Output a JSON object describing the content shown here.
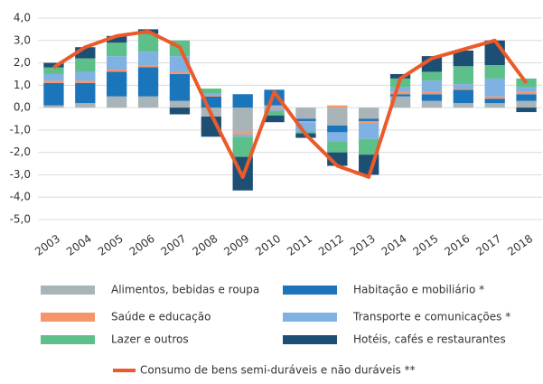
{
  "chart_data": {
    "type": "bar",
    "stacked": true,
    "categories": [
      "2003",
      "2004",
      "2005",
      "2006",
      "2007",
      "2008",
      "2009",
      "2010",
      "2011",
      "2012",
      "2013",
      "2014",
      "2015",
      "2016",
      "2017",
      "2018"
    ],
    "series": [
      {
        "name": "Alimentos, bebidas e roupa",
        "color": "#a9b4b8",
        "values": [
          0.1,
          0.2,
          0.5,
          0.5,
          0.3,
          -0.4,
          -1.1,
          0.1,
          -0.5,
          -0.8,
          -0.5,
          0.5,
          0.3,
          0.2,
          0.2,
          0.3
        ]
      },
      {
        "name": "Habitação e mobiliário *",
        "color": "#1b75bb",
        "values": [
          1.0,
          0.9,
          1.1,
          1.3,
          1.2,
          0.5,
          0.6,
          0.7,
          -0.1,
          -0.3,
          -0.1,
          0.1,
          0.3,
          0.6,
          0.2,
          0.3
        ]
      },
      {
        "name": "Saúde e educação",
        "color": "#f4956a",
        "values": [
          0.1,
          0.1,
          0.1,
          0.1,
          0.1,
          0.05,
          -0.1,
          -0.05,
          -0.05,
          0.1,
          -0.1,
          0.1,
          0.1,
          0.05,
          0.1,
          0.1
        ]
      },
      {
        "name": "Transporte e comunicações *",
        "color": "#7fb1e3",
        "values": [
          0.3,
          0.4,
          0.6,
          0.6,
          0.7,
          0.1,
          -0.1,
          -0.1,
          -0.4,
          -0.4,
          -0.7,
          0.2,
          0.5,
          0.2,
          0.8,
          0.2
        ]
      },
      {
        "name": "Lazer e outros",
        "color": "#5dbf8a",
        "values": [
          0.3,
          0.6,
          0.6,
          0.8,
          0.7,
          0.2,
          -0.9,
          -0.2,
          -0.1,
          -0.5,
          -0.7,
          0.4,
          0.4,
          0.8,
          0.6,
          0.4
        ]
      },
      {
        "name": "Hotéis, cafés e restaurantes",
        "color": "#1d4f74",
        "values": [
          0.2,
          0.5,
          0.3,
          0.2,
          -0.3,
          -0.9,
          -1.5,
          -0.3,
          -0.2,
          -0.6,
          -0.9,
          0.2,
          0.7,
          0.7,
          1.1,
          -0.2
        ]
      },
      {
        "name": "Consumo de bens semi-duráveis e não duráveis **",
        "color": "#ec5a2a",
        "type": "line",
        "values": [
          1.8,
          2.7,
          3.2,
          3.4,
          2.7,
          -0.3,
          -3.1,
          0.7,
          -1.2,
          -2.6,
          -3.1,
          1.3,
          2.2,
          2.6,
          3.0,
          1.1
        ]
      }
    ],
    "ylim": [
      -5,
      4
    ],
    "yticks": [
      {
        "value": -5,
        "label": "-5,0"
      },
      {
        "value": -4,
        "label": "-4,0"
      },
      {
        "value": -3,
        "label": "-3,0"
      },
      {
        "value": -2,
        "label": "-2,0"
      },
      {
        "value": -1,
        "label": "-1,0"
      },
      {
        "value": 0,
        "label": "0,0"
      },
      {
        "value": 1,
        "label": "1,0"
      },
      {
        "value": 2,
        "label": "2,0"
      },
      {
        "value": 3,
        "label": "3,0"
      },
      {
        "value": 4,
        "label": "4,0"
      }
    ],
    "grid": true
  }
}
